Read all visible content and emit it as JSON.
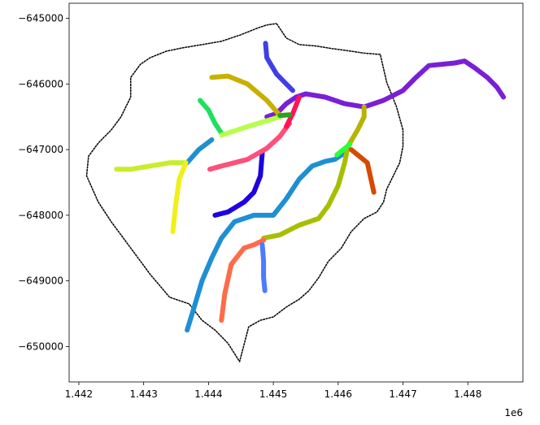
{
  "chart_data": {
    "type": "line",
    "title": "",
    "xlabel": "",
    "ylabel": "",
    "x_offset_label": "1e6",
    "xlim": [
      1.44185,
      1.44885
    ],
    "ylim": [
      -650540,
      -644770
    ],
    "xticks": [
      1.442,
      1.443,
      1.444,
      1.445,
      1.446,
      1.447,
      1.448
    ],
    "xtick_labels": [
      "1.442",
      "1.443",
      "1.444",
      "1.445",
      "1.446",
      "1.447",
      "1.448"
    ],
    "yticks": [
      -645000,
      -646000,
      -647000,
      -648000,
      -649000,
      -650000
    ],
    "ytick_labels": [
      "−645000",
      "−646000",
      "−647000",
      "−648000",
      "−649000",
      "−650000"
    ],
    "grid": false,
    "legend": "none",
    "boundary": {
      "color": "#000000",
      "x": [
        1.44505,
        1.4452,
        1.4454,
        1.44565,
        1.4459,
        1.4462,
        1.4464,
        1.44665,
        1.44675,
        1.4468,
        1.4469,
        1.447,
        1.447,
        1.44695,
        1.44685,
        1.44675,
        1.4467,
        1.4466,
        1.4464,
        1.4462,
        1.44605,
        1.44585,
        1.4457,
        1.44555,
        1.4454,
        1.4452,
        1.445,
        1.4448,
        1.44462,
        1.44448,
        1.4443,
        1.4441,
        1.4439,
        1.4437,
        1.4434,
        1.4431,
        1.4428,
        1.4425,
        1.4423,
        1.44212,
        1.44215,
        1.4423,
        1.4425,
        1.44265,
        1.4428,
        1.4428,
        1.44295,
        1.4431,
        1.44335,
        1.4436,
        1.4439,
        1.4442,
        1.4445,
        1.44475,
        1.4449,
        1.44505
      ],
      "y": [
        -645080,
        -645300,
        -645400,
        -645420,
        -645460,
        -645500,
        -645530,
        -645550,
        -645980,
        -646100,
        -646350,
        -646700,
        -646950,
        -647200,
        -647400,
        -647600,
        -647800,
        -647950,
        -648050,
        -648250,
        -648500,
        -648700,
        -648950,
        -649150,
        -649280,
        -649400,
        -649550,
        -649600,
        -649700,
        -650230,
        -649950,
        -649750,
        -649600,
        -649350,
        -649250,
        -648900,
        -648500,
        -648100,
        -647800,
        -647400,
        -647100,
        -646900,
        -646700,
        -646500,
        -646200,
        -645900,
        -645700,
        -645600,
        -645500,
        -645450,
        -645400,
        -645350,
        -645250,
        -645150,
        -645100,
        -645080
      ]
    },
    "series": [
      {
        "color": "#7b1fd6",
        "x": [
          1.4449,
          1.44505,
          1.4452,
          1.44535,
          1.4455,
          1.4458,
          1.4461,
          1.4464,
          1.4467,
          1.447,
          1.4472,
          1.4474,
          1.4476,
          1.4478,
          1.44795,
          1.4481,
          1.4483,
          1.44845,
          1.44855
        ],
        "y": [
          -646500,
          -646450,
          -646300,
          -646200,
          -646150,
          -646200,
          -646300,
          -646350,
          -646250,
          -646100,
          -645900,
          -645720,
          -645700,
          -645680,
          -645650,
          -645750,
          -645900,
          -646050,
          -646200
        ]
      },
      {
        "color": "#3f3fe8",
        "x": [
          1.44488,
          1.4449,
          1.44505,
          1.4452,
          1.4453
        ],
        "y": [
          -645380,
          -645600,
          -645850,
          -646000,
          -646100
        ]
      },
      {
        "color": "#c9b000",
        "x": [
          1.44405,
          1.4443,
          1.4446,
          1.4449,
          1.4451
        ],
        "y": [
          -645900,
          -645880,
          -646000,
          -646250,
          -646480
        ]
      },
      {
        "color": "#1f8fd3",
        "x": [
          1.44367,
          1.44378,
          1.4439,
          1.44405,
          1.4442,
          1.4444,
          1.4447,
          1.445,
          1.4452,
          1.4454,
          1.4456,
          1.4458,
          1.44595,
          1.4461
        ],
        "y": [
          -649750,
          -649400,
          -649000,
          -648650,
          -648350,
          -648100,
          -648000,
          -648000,
          -647750,
          -647450,
          -647250,
          -647180,
          -647150,
          -647050
        ]
      },
      {
        "color": "#1f8fd3",
        "x": [
          1.44367,
          1.44385,
          1.44405
        ],
        "y": [
          -647200,
          -647000,
          -646850
        ]
      },
      {
        "color": "#a7bf00",
        "x": [
          1.44485,
          1.4451,
          1.4454,
          1.4457,
          1.44585,
          1.446,
          1.4461,
          1.44615
        ],
        "y": [
          -648350,
          -648300,
          -648150,
          -648050,
          -647850,
          -647550,
          -647200,
          -646950
        ]
      },
      {
        "color": "#ff6b4a",
        "x": [
          1.4442,
          1.44425,
          1.44435,
          1.44455,
          1.4447,
          1.44485
        ],
        "y": [
          -649600,
          -649200,
          -648750,
          -648500,
          -648450,
          -648380
        ]
      },
      {
        "color": "#4b7bff",
        "x": [
          1.44483,
          1.44485,
          1.44485,
          1.44487
        ],
        "y": [
          -648450,
          -648700,
          -648950,
          -649150
        ]
      },
      {
        "color": "#1e00e0",
        "x": [
          1.4441,
          1.4443,
          1.44455,
          1.4447,
          1.4448,
          1.44483
        ],
        "y": [
          -648000,
          -647950,
          -647800,
          -647650,
          -647400,
          -647050
        ]
      },
      {
        "color": "#ff4f7a",
        "x": [
          1.44402,
          1.4442,
          1.4446,
          1.4449,
          1.4451,
          1.44525
        ],
        "y": [
          -647300,
          -647250,
          -647150,
          -646980,
          -646800,
          -646600
        ]
      },
      {
        "color": "#ff1458",
        "x": [
          1.4452,
          1.4453,
          1.4454
        ],
        "y": [
          -646650,
          -646450,
          -646200
        ]
      },
      {
        "color": "#1fe05f",
        "x": [
          1.44387,
          1.444,
          1.4441,
          1.4442
        ],
        "y": [
          -646250,
          -646400,
          -646600,
          -646750
        ]
      },
      {
        "color": "#b6ff4a",
        "x": [
          1.4442,
          1.4446,
          1.4449,
          1.4451
        ],
        "y": [
          -646780,
          -646650,
          -646560,
          -646500
        ]
      },
      {
        "color": "#26a51a",
        "x": [
          1.4451,
          1.44525
        ],
        "y": [
          -646480,
          -646470
        ]
      },
      {
        "color": "#c6ee2a",
        "x": [
          1.44258,
          1.4428,
          1.4431,
          1.4434,
          1.44365
        ],
        "y": [
          -647300,
          -647300,
          -647250,
          -647200,
          -647200
        ]
      },
      {
        "color": "#f0f01a",
        "x": [
          1.44345,
          1.4435,
          1.44355,
          1.44365
        ],
        "y": [
          -648250,
          -647800,
          -647450,
          -647200
        ]
      },
      {
        "color": "#b5b400",
        "x": [
          1.44615,
          1.4463,
          1.4464,
          1.4464
        ],
        "y": [
          -646950,
          -646700,
          -646500,
          -646350
        ]
      },
      {
        "color": "#2bff3a",
        "x": [
          1.44598,
          1.44618
        ],
        "y": [
          -647080,
          -646920
        ]
      },
      {
        "color": "#d64a00",
        "x": [
          1.4462,
          1.44645,
          1.44655
        ],
        "y": [
          -647000,
          -647200,
          -647650
        ]
      }
    ]
  }
}
